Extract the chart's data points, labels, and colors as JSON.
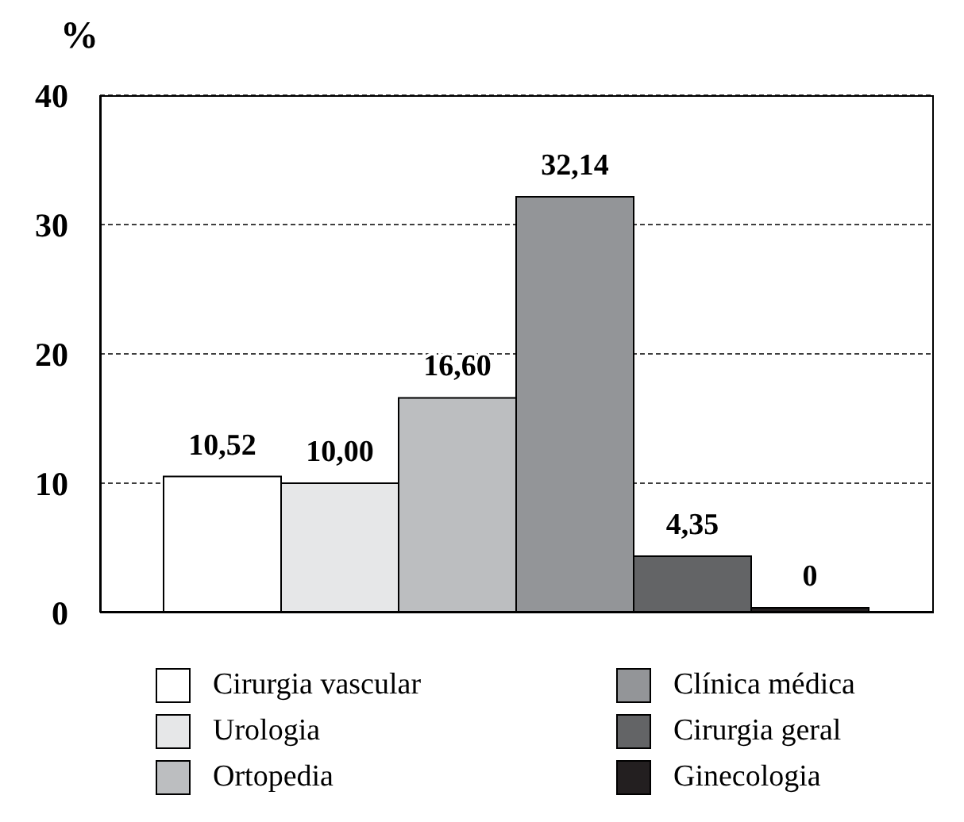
{
  "chart_data": {
    "type": "bar",
    "ylabel": "%",
    "categories": [
      null
    ],
    "series": [
      {
        "name": "Cirurgia vascular",
        "color": "#ffffff",
        "values": [
          10.52
        ],
        "value_labels": [
          "10,52"
        ]
      },
      {
        "name": "Urologia",
        "color": "#e6e7e8",
        "values": [
          10.0
        ],
        "value_labels": [
          "10,00"
        ]
      },
      {
        "name": "Ortopedia",
        "color": "#bcbec0",
        "values": [
          16.6
        ],
        "value_labels": [
          "16,60"
        ]
      },
      {
        "name": "Clínica médica",
        "color": "#939598",
        "values": [
          32.14
        ],
        "value_labels": [
          "32,14"
        ]
      },
      {
        "name": "Cirurgia geral",
        "color": "#636466",
        "values": [
          4.35
        ],
        "value_labels": [
          "4,35"
        ]
      },
      {
        "name": "Ginecologia",
        "color": "#231f20",
        "values": [
          0
        ],
        "value_labels": [
          "0"
        ]
      }
    ],
    "ylim": [
      0,
      40
    ],
    "yticks": [
      0,
      10,
      20,
      30,
      40
    ],
    "grid": "y",
    "legend": "bottom",
    "tick_labels": "y"
  }
}
